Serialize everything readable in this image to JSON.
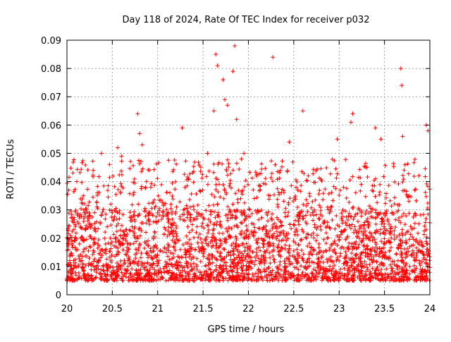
{
  "chart_data": {
    "type": "scatter",
    "title": "Day 118 of 2024, Rate Of TEC Index for receiver p032",
    "xlabel": "GPS time / hours",
    "ylabel": "ROTI / TECUs",
    "xlim": [
      20,
      24
    ],
    "ylim": [
      0,
      0.09
    ],
    "x_ticks": [
      "20",
      "20.5",
      "21",
      "21.5",
      "22",
      "22.5",
      "23",
      "23.5",
      "24"
    ],
    "y_ticks": [
      "0",
      "0.01",
      "0.02",
      "0.03",
      "0.04",
      "0.05",
      "0.06",
      "0.07",
      "0.08",
      "0.09"
    ],
    "grid": true,
    "marker": "+",
    "series_color": "#ff0000",
    "noise_band": {
      "description": "dense cluster of ROTI values for all satellites",
      "y_range": [
        0.005,
        0.03
      ],
      "approx_point_count": 2600
    },
    "notable_points": [
      {
        "x": 20.02,
        "y": 0.037
      },
      {
        "x": 20.38,
        "y": 0.05
      },
      {
        "x": 20.56,
        "y": 0.052
      },
      {
        "x": 20.6,
        "y": 0.049
      },
      {
        "x": 20.78,
        "y": 0.064
      },
      {
        "x": 20.8,
        "y": 0.057
      },
      {
        "x": 20.83,
        "y": 0.053
      },
      {
        "x": 21.27,
        "y": 0.059
      },
      {
        "x": 21.55,
        "y": 0.05
      },
      {
        "x": 21.62,
        "y": 0.065
      },
      {
        "x": 21.64,
        "y": 0.085
      },
      {
        "x": 21.66,
        "y": 0.081
      },
      {
        "x": 21.72,
        "y": 0.076
      },
      {
        "x": 21.74,
        "y": 0.069
      },
      {
        "x": 21.77,
        "y": 0.067
      },
      {
        "x": 21.83,
        "y": 0.079
      },
      {
        "x": 21.85,
        "y": 0.088
      },
      {
        "x": 21.87,
        "y": 0.062
      },
      {
        "x": 21.95,
        "y": 0.05
      },
      {
        "x": 22.27,
        "y": 0.084
      },
      {
        "x": 22.45,
        "y": 0.054
      },
      {
        "x": 22.6,
        "y": 0.065
      },
      {
        "x": 22.98,
        "y": 0.055
      },
      {
        "x": 23.13,
        "y": 0.061
      },
      {
        "x": 23.15,
        "y": 0.064
      },
      {
        "x": 23.4,
        "y": 0.059
      },
      {
        "x": 23.46,
        "y": 0.055
      },
      {
        "x": 23.68,
        "y": 0.08
      },
      {
        "x": 23.69,
        "y": 0.074
      },
      {
        "x": 23.7,
        "y": 0.056
      },
      {
        "x": 23.96,
        "y": 0.06
      },
      {
        "x": 23.98,
        "y": 0.058
      }
    ]
  }
}
